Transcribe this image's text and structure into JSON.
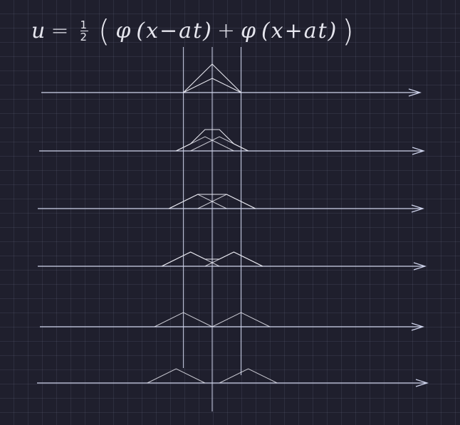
{
  "formula": {
    "lhs": "u",
    "equals": "=",
    "frac_num": "1",
    "frac_den": "2",
    "open_paren": "(",
    "phi1": "φ",
    "arg1": "(x−at)",
    "plus": "+",
    "phi2": "φ",
    "arg2": "(x+at)",
    "close_paren": ")"
  },
  "colors": {
    "background": "#1f1f2d",
    "grid": "#3a3c52",
    "axis": "#cfd4ec",
    "ink": "#e6e6ee"
  },
  "diagram": {
    "center_x": 3,
    "half_width": 2,
    "peak_height": 1,
    "snapshots": [
      {
        "index": 0,
        "shift": 0
      },
      {
        "index": 1,
        "shift": 0.5
      },
      {
        "index": 2,
        "shift": 1
      },
      {
        "index": 3,
        "shift": 1.5
      },
      {
        "index": 4,
        "shift": 2
      },
      {
        "index": 5,
        "shift": 2.5
      }
    ]
  }
}
